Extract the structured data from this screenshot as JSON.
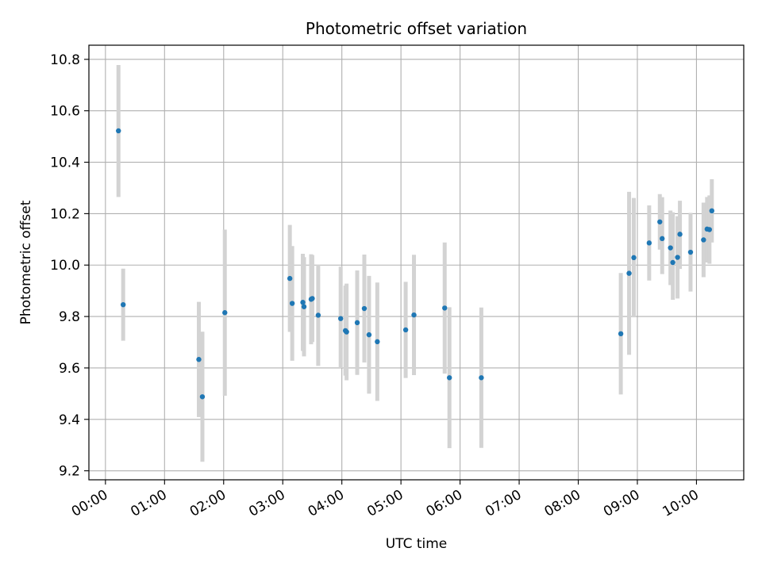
{
  "chart_data": {
    "type": "scatter",
    "title": "Photometric offset variation",
    "xlabel": "UTC time",
    "ylabel": "Photometric offset",
    "xlim_hours": [
      -0.28,
      10.8
    ],
    "ylim": [
      9.165,
      10.855
    ],
    "grid": true,
    "legend": "none",
    "x_ticks": [
      {
        "h": 0,
        "label": "00:00"
      },
      {
        "h": 1,
        "label": "01:00"
      },
      {
        "h": 2,
        "label": "02:00"
      },
      {
        "h": 3,
        "label": "03:00"
      },
      {
        "h": 4,
        "label": "04:00"
      },
      {
        "h": 5,
        "label": "05:00"
      },
      {
        "h": 6,
        "label": "06:00"
      },
      {
        "h": 7,
        "label": "07:00"
      },
      {
        "h": 8,
        "label": "08:00"
      },
      {
        "h": 9,
        "label": "09:00"
      },
      {
        "h": 10,
        "label": "10:00"
      }
    ],
    "y_ticks": [
      {
        "v": 9.2,
        "label": "9.2"
      },
      {
        "v": 9.4,
        "label": "9.4"
      },
      {
        "v": 9.6,
        "label": "9.6"
      },
      {
        "v": 9.8,
        "label": "9.8"
      },
      {
        "v": 10.0,
        "label": "10.0"
      },
      {
        "v": 10.2,
        "label": "10.2"
      },
      {
        "v": 10.4,
        "label": "10.4"
      },
      {
        "v": 10.6,
        "label": "10.6"
      },
      {
        "v": 10.8,
        "label": "10.8"
      }
    ],
    "colors": {
      "point": "#1f77b4",
      "errorbar": "#d3d3d3",
      "grid": "#b0b0b0"
    },
    "points": [
      {
        "t": 0.22,
        "y": 10.522,
        "lo": 10.265,
        "hi": 10.778
      },
      {
        "t": 0.3,
        "y": 9.846,
        "lo": 9.706,
        "hi": 9.986
      },
      {
        "t": 1.58,
        "y": 9.633,
        "lo": 9.409,
        "hi": 9.857
      },
      {
        "t": 1.64,
        "y": 9.488,
        "lo": 9.235,
        "hi": 9.741
      },
      {
        "t": 2.02,
        "y": 9.815,
        "lo": 9.492,
        "hi": 10.138
      },
      {
        "t": 3.12,
        "y": 9.948,
        "lo": 9.74,
        "hi": 10.156
      },
      {
        "t": 3.16,
        "y": 9.851,
        "lo": 9.628,
        "hi": 10.074
      },
      {
        "t": 3.34,
        "y": 9.855,
        "lo": 9.666,
        "hi": 10.044
      },
      {
        "t": 3.36,
        "y": 9.838,
        "lo": 9.645,
        "hi": 10.031
      },
      {
        "t": 3.48,
        "y": 9.867,
        "lo": 9.692,
        "hi": 10.042
      },
      {
        "t": 3.5,
        "y": 9.87,
        "lo": 9.701,
        "hi": 10.039
      },
      {
        "t": 3.6,
        "y": 9.805,
        "lo": 9.608,
        "hi": 10.002
      },
      {
        "t": 3.98,
        "y": 9.792,
        "lo": 9.6,
        "hi": 9.994
      },
      {
        "t": 4.06,
        "y": 9.745,
        "lo": 9.57,
        "hi": 9.92
      },
      {
        "t": 4.08,
        "y": 9.74,
        "lo": 9.552,
        "hi": 9.928
      },
      {
        "t": 4.26,
        "y": 9.776,
        "lo": 9.573,
        "hi": 9.979
      },
      {
        "t": 4.38,
        "y": 9.831,
        "lo": 9.621,
        "hi": 10.041
      },
      {
        "t": 4.46,
        "y": 9.729,
        "lo": 9.5,
        "hi": 9.958
      },
      {
        "t": 4.6,
        "y": 9.702,
        "lo": 9.472,
        "hi": 9.932
      },
      {
        "t": 5.08,
        "y": 9.748,
        "lo": 9.561,
        "hi": 9.935
      },
      {
        "t": 5.22,
        "y": 9.806,
        "lo": 9.572,
        "hi": 10.04
      },
      {
        "t": 5.74,
        "y": 9.833,
        "lo": 9.578,
        "hi": 10.088
      },
      {
        "t": 5.82,
        "y": 9.562,
        "lo": 9.288,
        "hi": 9.836
      },
      {
        "t": 6.36,
        "y": 9.562,
        "lo": 9.289,
        "hi": 9.835
      },
      {
        "t": 8.72,
        "y": 9.733,
        "lo": 9.497,
        "hi": 9.969
      },
      {
        "t": 8.86,
        "y": 9.968,
        "lo": 9.651,
        "hi": 10.285
      },
      {
        "t": 8.94,
        "y": 10.029,
        "lo": 9.797,
        "hi": 10.261
      },
      {
        "t": 9.2,
        "y": 10.086,
        "lo": 9.94,
        "hi": 10.232
      },
      {
        "t": 9.38,
        "y": 10.168,
        "lo": 10.06,
        "hi": 10.276
      },
      {
        "t": 9.42,
        "y": 10.103,
        "lo": 9.965,
        "hi": 10.264
      },
      {
        "t": 9.56,
        "y": 10.067,
        "lo": 9.922,
        "hi": 10.212
      },
      {
        "t": 9.6,
        "y": 10.01,
        "lo": 9.865,
        "hi": 10.205
      },
      {
        "t": 9.68,
        "y": 10.03,
        "lo": 9.87,
        "hi": 10.19
      },
      {
        "t": 9.72,
        "y": 10.12,
        "lo": 9.985,
        "hi": 10.25
      },
      {
        "t": 9.9,
        "y": 10.05,
        "lo": 9.897,
        "hi": 10.203
      },
      {
        "t": 10.12,
        "y": 10.098,
        "lo": 9.953,
        "hi": 10.243
      },
      {
        "t": 10.18,
        "y": 10.14,
        "lo": 10.01,
        "hi": 10.265
      },
      {
        "t": 10.22,
        "y": 10.138,
        "lo": 10.005,
        "hi": 10.271
      },
      {
        "t": 10.26,
        "y": 10.211,
        "lo": 10.088,
        "hi": 10.334
      }
    ]
  }
}
